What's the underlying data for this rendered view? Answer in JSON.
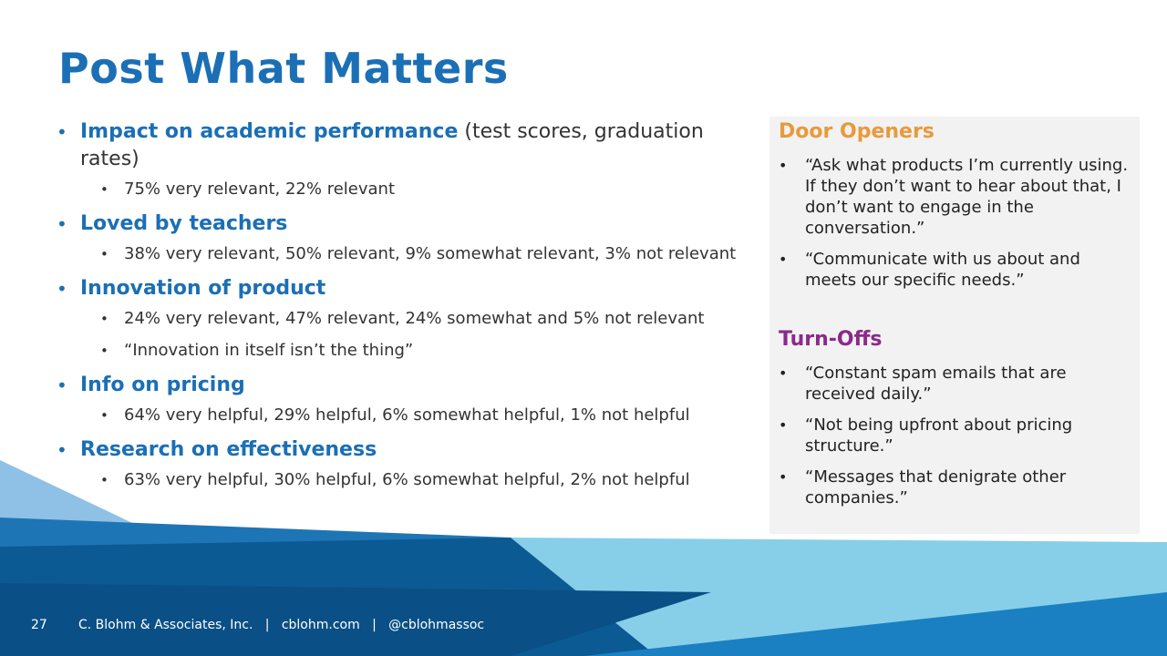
{
  "title": "Post What Matters",
  "main_bullets": [
    {
      "heading": "Impact on academic performance",
      "paren": "(test scores, graduation rates)",
      "subs": [
        "75% very relevant, 22% relevant"
      ]
    },
    {
      "heading": "Loved by teachers",
      "paren": "",
      "subs": [
        "38% very relevant, 50% relevant, 9% somewhat relevant, 3% not relevant"
      ]
    },
    {
      "heading": "Innovation of product",
      "paren": "",
      "subs": [
        "24% very relevant, 47% relevant, 24% somewhat and 5% not relevant",
        "“Innovation in itself isn’t the thing”"
      ]
    },
    {
      "heading": "Info on pricing",
      "paren": "",
      "subs": [
        "64% very helpful, 29% helpful, 6% somewhat helpful, 1% not helpful"
      ]
    },
    {
      "heading": "Research on effectiveness",
      "paren": "",
      "subs": [
        "63% very helpful, 30% helpful, 6% somewhat helpful, 2% not helpful"
      ]
    }
  ],
  "door_openers": {
    "heading": "Door Openers",
    "quotes": [
      "“Ask what products I’m currently using. If they don’t want to hear about that, I don’t want to engage in the conversation.”",
      "“Communicate with us about and meets our specific needs.”"
    ]
  },
  "turn_offs": {
    "heading": "Turn-Offs",
    "quotes": [
      "“Constant spam emails that are received daily.”",
      "“Not being upfront about pricing structure.”",
      "“Messages that denigrate other companies.”"
    ]
  },
  "footer": {
    "page_number": "27",
    "text": "C. Blohm & Associates, Inc.   |   cblohm.com   |   @cblohmassoc"
  },
  "colors": {
    "title": "#1b6fb5",
    "door_openers": "#e89a3a",
    "turn_offs": "#8a2a8a",
    "panel_bg": "#f2f2f2"
  }
}
